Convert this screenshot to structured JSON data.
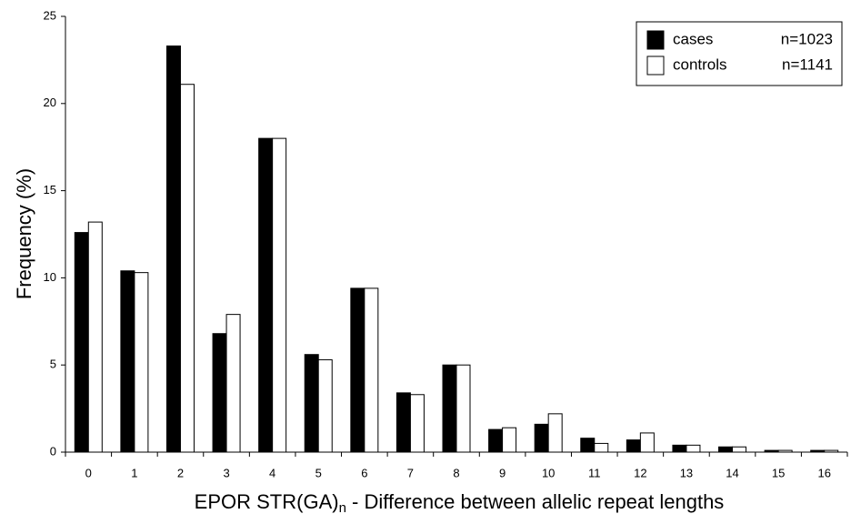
{
  "chart_data": {
    "type": "bar",
    "y_label": "Frequency (%)",
    "x_label": "EPOR STR(GA)",
    "x_label_sub": "n",
    "x_label_rest": " - Difference between allelic repeat lengths",
    "categories": [
      "0",
      "1",
      "2",
      "3",
      "4",
      "5",
      "6",
      "7",
      "8",
      "9",
      "10",
      "11",
      "12",
      "13",
      "14",
      "15",
      "16"
    ],
    "series": [
      {
        "name": "cases",
        "n": "n=1023",
        "color": "#000000",
        "values": [
          12.6,
          10.4,
          23.3,
          6.8,
          18.0,
          5.6,
          9.4,
          3.4,
          5.0,
          1.3,
          1.6,
          0.8,
          0.7,
          0.4,
          0.3,
          0.1,
          0.1
        ]
      },
      {
        "name": "controls",
        "n": "n=1141",
        "color": "#ffffff",
        "values": [
          13.2,
          10.3,
          21.1,
          7.9,
          18.0,
          5.3,
          9.4,
          3.3,
          5.0,
          1.4,
          2.2,
          0.5,
          1.1,
          0.4,
          0.3,
          0.1,
          0.1
        ]
      }
    ],
    "ylim": [
      0,
      25
    ],
    "yticks": [
      0,
      5,
      10,
      15,
      20,
      25
    ],
    "grid": false,
    "legend": "upper right"
  }
}
